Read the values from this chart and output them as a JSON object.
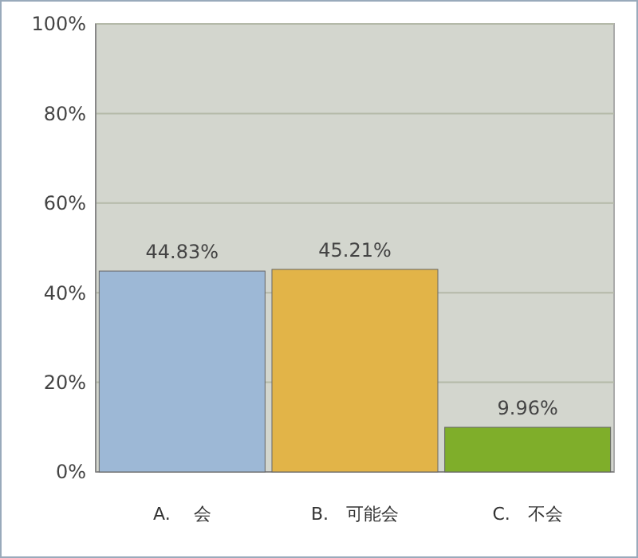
{
  "chart_data": {
    "type": "bar",
    "categories": [
      "A.　 会",
      "B.　可能会",
      "C.　不会"
    ],
    "values": [
      44.83,
      45.21,
      9.96
    ],
    "colors": [
      "#9db8d6",
      "#e2b448",
      "#7fae2a"
    ],
    "value_labels": [
      "44.83%",
      "45.21%",
      "9.96%"
    ],
    "ylim": [
      0,
      100
    ],
    "yticks": [
      {
        "value": 0,
        "label": "0%"
      },
      {
        "value": 20,
        "label": "20%"
      },
      {
        "value": 40,
        "label": "40%"
      },
      {
        "value": 60,
        "label": "60%"
      },
      {
        "value": 80,
        "label": "80%"
      },
      {
        "value": 100,
        "label": "100%"
      }
    ],
    "grid": "y"
  }
}
